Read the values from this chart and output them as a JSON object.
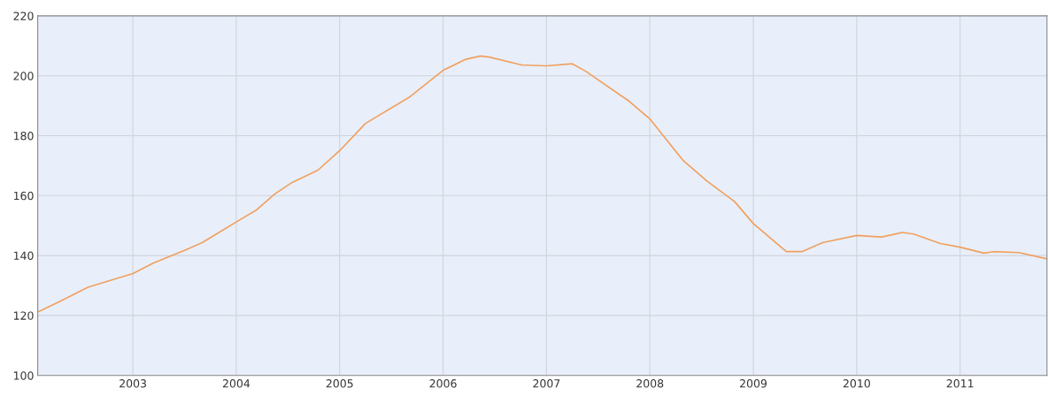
{
  "chart_data": {
    "type": "line",
    "x": [
      2002.09,
      2002.29,
      2002.57,
      2003.0,
      2003.2,
      2003.51,
      2003.67,
      2004.0,
      2004.2,
      2004.37,
      2004.54,
      2004.79,
      2005.0,
      2005.25,
      2005.68,
      2006.0,
      2006.22,
      2006.36,
      2006.44,
      2006.76,
      2007.0,
      2007.25,
      2007.38,
      2007.8,
      2008.0,
      2008.32,
      2008.55,
      2008.82,
      2009.0,
      2009.32,
      2009.47,
      2009.67,
      2010.0,
      2010.24,
      2010.44,
      2010.55,
      2010.81,
      2011.0,
      2011.23,
      2011.32,
      2011.57,
      2011.84
    ],
    "series": [
      {
        "color": "#f0a060",
        "values": [
          121.3,
          124.6,
          129.5,
          134.0,
          137.5,
          141.9,
          144.3,
          151.2,
          155.3,
          160.5,
          164.4,
          168.5,
          175.0,
          184.1,
          193.0,
          201.8,
          205.5,
          206.6,
          206.3,
          203.6,
          203.3,
          204.0,
          201.5,
          191.5,
          185.6,
          171.8,
          164.9,
          158.0,
          150.7,
          141.3,
          141.3,
          144.3,
          146.7,
          146.2,
          147.7,
          147.2,
          144.0,
          142.8,
          140.8,
          141.3,
          141.0,
          138.9
        ]
      }
    ],
    "xlim": [
      2002.08,
      2011.84
    ],
    "xticks": [
      2003,
      2004,
      2005,
      2006,
      2007,
      2008,
      2009,
      2010,
      2011
    ],
    "ylim": [
      100,
      220
    ],
    "yticks": [
      100,
      120,
      140,
      160,
      180,
      200,
      220
    ],
    "grid": true,
    "marker": "none",
    "line_style": "solid"
  }
}
